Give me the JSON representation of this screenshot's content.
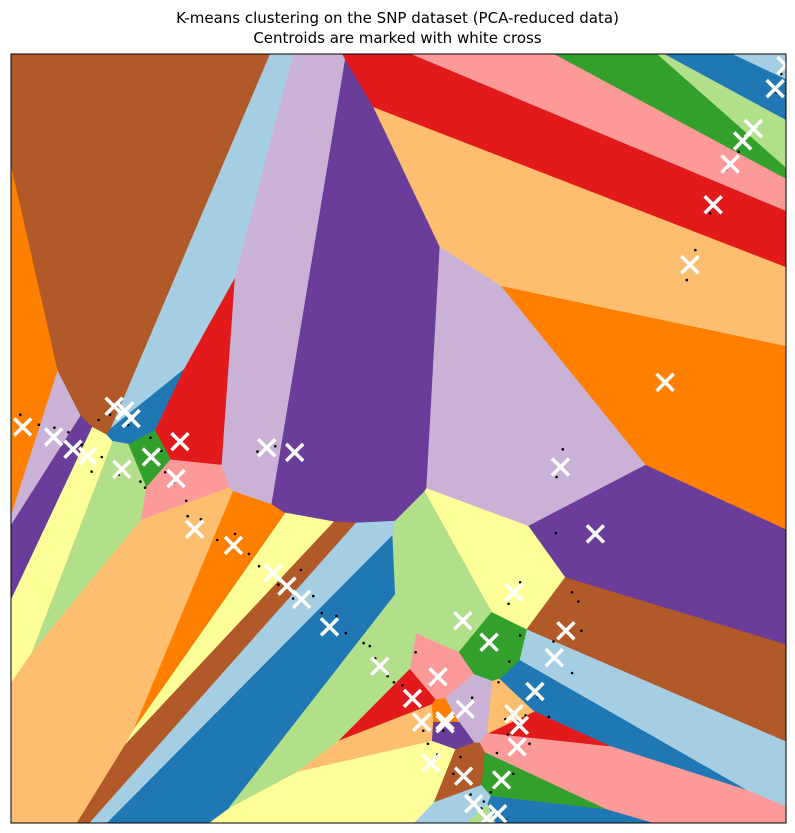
{
  "chart_data": {
    "type": "scatter",
    "title": "K-means clustering on the SNP dataset (PCA-reduced data)",
    "subtitle": "Centroids are marked with white cross",
    "xlabel": "",
    "ylabel": "",
    "xlim": [
      0,
      100
    ],
    "ylim": [
      0,
      100
    ],
    "grid": false,
    "legend": "none",
    "ticks_visible": false,
    "region_colors": [
      "#a6cee3",
      "#1f78b4",
      "#b2df8a",
      "#33a02c",
      "#fb9a99",
      "#e31a1c",
      "#fdbf6f",
      "#ff7f00",
      "#cab2d6",
      "#6a3d9a",
      "#ffff99",
      "#b15928"
    ],
    "centroid_color": "#ffffff",
    "point_color": "#000000",
    "centroids": [
      [
        100.0,
        98.5
      ],
      [
        98.6,
        95.5
      ],
      [
        95.8,
        90.3
      ],
      [
        94.4,
        88.7
      ],
      [
        92.8,
        85.7
      ],
      [
        90.6,
        80.4
      ],
      [
        87.6,
        72.6
      ],
      [
        84.4,
        57.3
      ],
      [
        70.9,
        46.3
      ],
      [
        75.4,
        37.6
      ],
      [
        64.9,
        30.0
      ],
      [
        71.6,
        25.0
      ],
      [
        70.1,
        21.5
      ],
      [
        67.6,
        17.1
      ],
      [
        58.3,
        26.3
      ],
      [
        61.7,
        23.5
      ],
      [
        55.1,
        19.0
      ],
      [
        51.8,
        16.2
      ],
      [
        53.0,
        13.1
      ],
      [
        56.0,
        13.3
      ],
      [
        58.6,
        14.8
      ],
      [
        56.0,
        12.9
      ],
      [
        54.2,
        7.8
      ],
      [
        58.4,
        6.1
      ],
      [
        59.7,
        2.5
      ],
      [
        62.8,
        1.2
      ],
      [
        61.4,
        0.6
      ],
      [
        63.3,
        5.6
      ],
      [
        65.3,
        9.9
      ],
      [
        65.6,
        12.7
      ],
      [
        64.9,
        14.2
      ],
      [
        1.5,
        51.5
      ],
      [
        5.5,
        50.2
      ],
      [
        8.0,
        48.6
      ],
      [
        9.9,
        47.7
      ],
      [
        13.3,
        54.2
      ],
      [
        14.7,
        53.6
      ],
      [
        15.5,
        52.6
      ],
      [
        14.3,
        46.0
      ],
      [
        18.1,
        47.6
      ],
      [
        21.3,
        44.8
      ],
      [
        21.8,
        49.6
      ],
      [
        23.7,
        38.2
      ],
      [
        28.7,
        36.1
      ],
      [
        33.0,
        48.8
      ],
      [
        36.6,
        48.2
      ],
      [
        33.8,
        32.5
      ],
      [
        35.6,
        30.8
      ],
      [
        37.5,
        29.1
      ],
      [
        41.1,
        25.5
      ],
      [
        47.6,
        20.4
      ]
    ],
    "points": [
      [
        99.8,
        98.7
      ],
      [
        99.4,
        97.4
      ],
      [
        98.8,
        95.0
      ],
      [
        96.4,
        90.8
      ],
      [
        95.2,
        89.6
      ],
      [
        93.9,
        87.3
      ],
      [
        92.3,
        85.0
      ],
      [
        90.2,
        79.3
      ],
      [
        88.3,
        74.5
      ],
      [
        87.2,
        70.6
      ],
      [
        71.2,
        48.6
      ],
      [
        70.4,
        45.0
      ],
      [
        73.2,
        28.8
      ],
      [
        65.7,
        31.3
      ],
      [
        64.2,
        28.5
      ],
      [
        70.0,
        23.6
      ],
      [
        72.4,
        19.5
      ],
      [
        68.0,
        16.4
      ],
      [
        66.4,
        14.0
      ],
      [
        64.1,
        11.5
      ],
      [
        62.7,
        9.1
      ],
      [
        64.8,
        6.4
      ],
      [
        61.9,
        4.0
      ],
      [
        60.7,
        1.9
      ],
      [
        59.3,
        3.7
      ],
      [
        57.1,
        6.4
      ],
      [
        55.0,
        8.9
      ],
      [
        53.2,
        12.0
      ],
      [
        52.5,
        15.6
      ],
      [
        50.5,
        17.9
      ],
      [
        48.6,
        19.1
      ],
      [
        47.0,
        21.4
      ],
      [
        45.5,
        23.4
      ],
      [
        43.2,
        24.7
      ],
      [
        42.0,
        26.9
      ],
      [
        40.1,
        27.3
      ],
      [
        39.0,
        29.5
      ],
      [
        36.4,
        29.2
      ],
      [
        34.5,
        31.0
      ],
      [
        32.0,
        33.4
      ],
      [
        30.7,
        35.0
      ],
      [
        28.9,
        37.6
      ],
      [
        27.7,
        37.1
      ],
      [
        24.5,
        39.5
      ],
      [
        22.6,
        41.9
      ],
      [
        21.0,
        44.3
      ],
      [
        19.9,
        45.6
      ],
      [
        17.3,
        43.6
      ],
      [
        16.7,
        44.4
      ],
      [
        19.4,
        48.4
      ],
      [
        18.0,
        50.1
      ],
      [
        15.1,
        51.8
      ],
      [
        12.8,
        53.1
      ],
      [
        11.3,
        52.4
      ],
      [
        9.1,
        49.2
      ],
      [
        7.4,
        50.8
      ],
      [
        5.6,
        51.4
      ],
      [
        3.6,
        51.8
      ],
      [
        1.2,
        53.1
      ],
      [
        2.5,
        50.5
      ],
      [
        10.4,
        45.7
      ],
      [
        11.7,
        47.6
      ],
      [
        13.9,
        45.3
      ],
      [
        22.8,
        39.9
      ],
      [
        26.6,
        36.8
      ],
      [
        31.8,
        48.3
      ],
      [
        34.1,
        49.0
      ],
      [
        37.4,
        32.9
      ],
      [
        55.8,
        12.0
      ],
      [
        57.0,
        14.0
      ],
      [
        59.5,
        16.3
      ],
      [
        62.9,
        18.3
      ],
      [
        64.3,
        21.0
      ],
      [
        65.7,
        24.4
      ],
      [
        70.3,
        37.7
      ],
      [
        72.4,
        30.0
      ],
      [
        73.6,
        25.0
      ],
      [
        69.4,
        13.8
      ],
      [
        66.9,
        10.3
      ],
      [
        63.8,
        13.5
      ],
      [
        61.0,
        2.8
      ],
      [
        63.9,
        0.4
      ],
      [
        58.0,
        8.6
      ],
      [
        53.8,
        10.3
      ],
      [
        52.2,
        22.2
      ],
      [
        49.4,
        18.3
      ],
      [
        46.3,
        23.0
      ]
    ]
  }
}
